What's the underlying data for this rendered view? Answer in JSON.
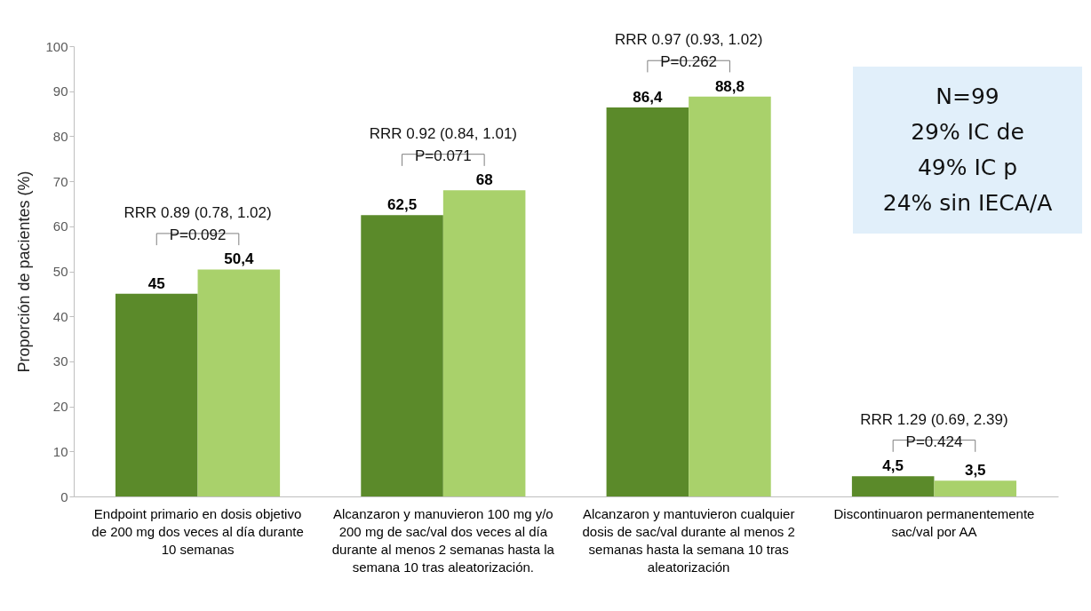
{
  "chart_data": {
    "type": "bar",
    "ylabel": "Proporción de pacientes (%)",
    "categories": [
      "Endpoint primario en dosis objetivo de 200 mg dos veces al día durante 10 semanas",
      "Alcanzaron y manuvieron 100 mg y/o 200 mg de sac/val dos veces al día durante al menos 2 semanas hasta la semana 10 tras aleatorización.",
      "Alcanzaron y mantuvieron cualquier dosis de sac/val durante al menos 2 semanas hasta la semana 10 tras aleatorización",
      "Discontinuaron permanentemente sac/val por AA"
    ],
    "series": [
      {
        "color": "#5b8a2a",
        "values": [
          45,
          62.5,
          86.4,
          4.5
        ],
        "value_labels": [
          "45",
          "62,5",
          "86,4",
          "4,5"
        ]
      },
      {
        "color": "#a9d16b",
        "values": [
          50.4,
          68,
          88.8,
          3.5
        ],
        "value_labels": [
          "50,4",
          "68",
          "88,8",
          "3,5"
        ]
      }
    ],
    "ylim": [
      0,
      100
    ],
    "yticks": [
      0,
      10,
      20,
      30,
      40,
      50,
      60,
      70,
      80,
      90,
      100
    ],
    "annotations": [
      "RRR 0.89 (0.78, 1.02)\nP=0.092",
      "RRR 0.92 (0.84, 1.01)\nP=0.071",
      "RRR 0.97 (0.93, 1.02)\nP=0.262",
      "RRR 1.29 (0.69, 2.39)\nP=0.424",
      "N=99",
      "29% IC de",
      "49% IC p",
      "24% sin IECA/A"
    ]
  }
}
